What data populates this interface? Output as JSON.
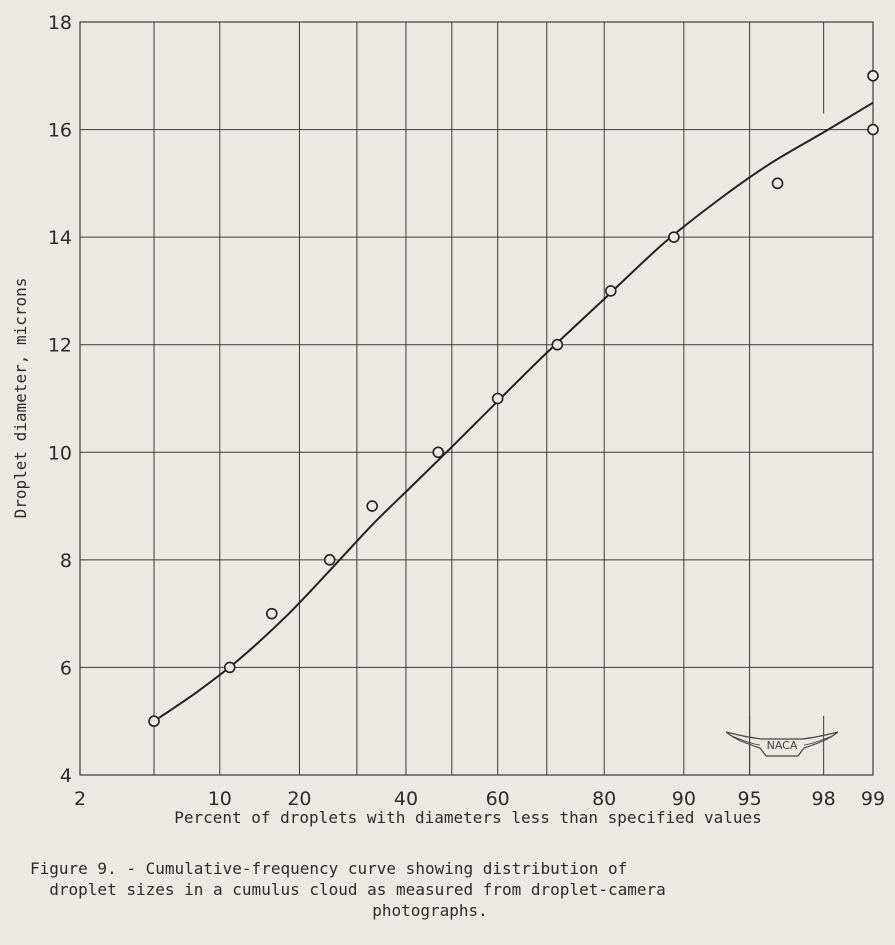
{
  "chart_data": {
    "type": "scatter",
    "ylabel": "Droplet diameter, microns",
    "xlabel": "Percent of droplets with diameters less than specified values",
    "x_scale": "probability",
    "y_ticks": [
      "4",
      "6",
      "8",
      "10",
      "12",
      "14",
      "16",
      "18"
    ],
    "y_tick_values": [
      4,
      6,
      8,
      10,
      12,
      14,
      16,
      18
    ],
    "x_ticks": [
      "2",
      "10",
      "20",
      "40",
      "60",
      "80",
      "90",
      "95",
      "98",
      "99"
    ],
    "x_tick_values": [
      2,
      10,
      20,
      40,
      60,
      80,
      90,
      95,
      98,
      99
    ],
    "ylim": [
      4,
      18
    ],
    "grid": true,
    "series": [
      {
        "kind": "points",
        "points": [
          {
            "x": 5,
            "y": 5
          },
          {
            "x": 11,
            "y": 6
          },
          {
            "x": 16,
            "y": 7
          },
          {
            "x": 25,
            "y": 8
          },
          {
            "x": 33,
            "y": 9
          },
          {
            "x": 47,
            "y": 10
          },
          {
            "x": 60,
            "y": 11
          },
          {
            "x": 72,
            "y": 12
          },
          {
            "x": 81,
            "y": 13
          },
          {
            "x": 89,
            "y": 14
          },
          {
            "x": 96.4,
            "y": 15
          },
          {
            "x": 99,
            "y": 16
          },
          {
            "x": 99,
            "y": 17
          }
        ]
      },
      {
        "kind": "curve",
        "points": [
          {
            "x": 5,
            "y": 5
          },
          {
            "x": 8,
            "y": 5.55
          },
          {
            "x": 12,
            "y": 6.15
          },
          {
            "x": 18,
            "y": 6.95
          },
          {
            "x": 25,
            "y": 7.8
          },
          {
            "x": 33,
            "y": 8.65
          },
          {
            "x": 41,
            "y": 9.35
          },
          {
            "x": 50,
            "y": 10.1
          },
          {
            "x": 60,
            "y": 10.95
          },
          {
            "x": 70,
            "y": 11.85
          },
          {
            "x": 80,
            "y": 12.85
          },
          {
            "x": 88,
            "y": 13.9
          },
          {
            "x": 93,
            "y": 14.7
          },
          {
            "x": 96,
            "y": 15.35
          },
          {
            "x": 98,
            "y": 15.95
          },
          {
            "x": 99,
            "y": 16.5
          }
        ]
      }
    ]
  },
  "logo": {
    "text": "NACA"
  },
  "caption": {
    "line1": "Figure 9. - Cumulative-frequency curve showing distribution of",
    "line2": "  droplet sizes in a cumulus cloud as measured from droplet-camera",
    "line3": "photographs."
  }
}
